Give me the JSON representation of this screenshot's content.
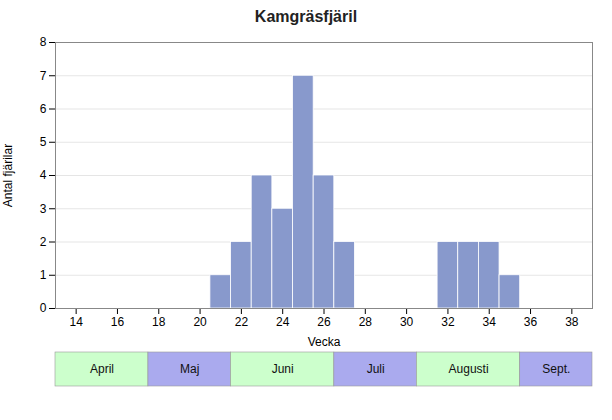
{
  "chart_data": {
    "type": "bar",
    "title": "Kamgräsfjäril",
    "xlabel": "Vecka",
    "ylabel": "Antal fjärilar",
    "x": [
      21,
      22,
      23,
      24,
      25,
      26,
      27,
      32,
      33,
      34,
      35
    ],
    "values": [
      1,
      2,
      4,
      3,
      7,
      4,
      2,
      2,
      2,
      2,
      1
    ],
    "color": "#8899cc",
    "xlim": [
      13,
      39
    ],
    "xticks": [
      14,
      16,
      18,
      20,
      22,
      24,
      26,
      28,
      30,
      32,
      34,
      36,
      38
    ],
    "ylim": [
      0,
      8
    ],
    "yticks": [
      0,
      1,
      2,
      3,
      4,
      5,
      6,
      7,
      8
    ],
    "grid": true,
    "annotations": [
      {
        "text": "April",
        "x_start": 13,
        "x_end": 17.5,
        "color": "#ccffcc"
      },
      {
        "text": "Maj",
        "x_start": 17.5,
        "x_end": 21.5,
        "color": "#aaaaee"
      },
      {
        "text": "Juni",
        "x_start": 21.5,
        "x_end": 26.5,
        "color": "#ccffcc"
      },
      {
        "text": "Juli",
        "x_start": 26.5,
        "x_end": 30.5,
        "color": "#aaaaee"
      },
      {
        "text": "Augusti",
        "x_start": 30.5,
        "x_end": 35.5,
        "color": "#ccffcc"
      },
      {
        "text": "Sept.",
        "x_start": 35.5,
        "x_end": 39,
        "color": "#aaaaee"
      }
    ]
  }
}
